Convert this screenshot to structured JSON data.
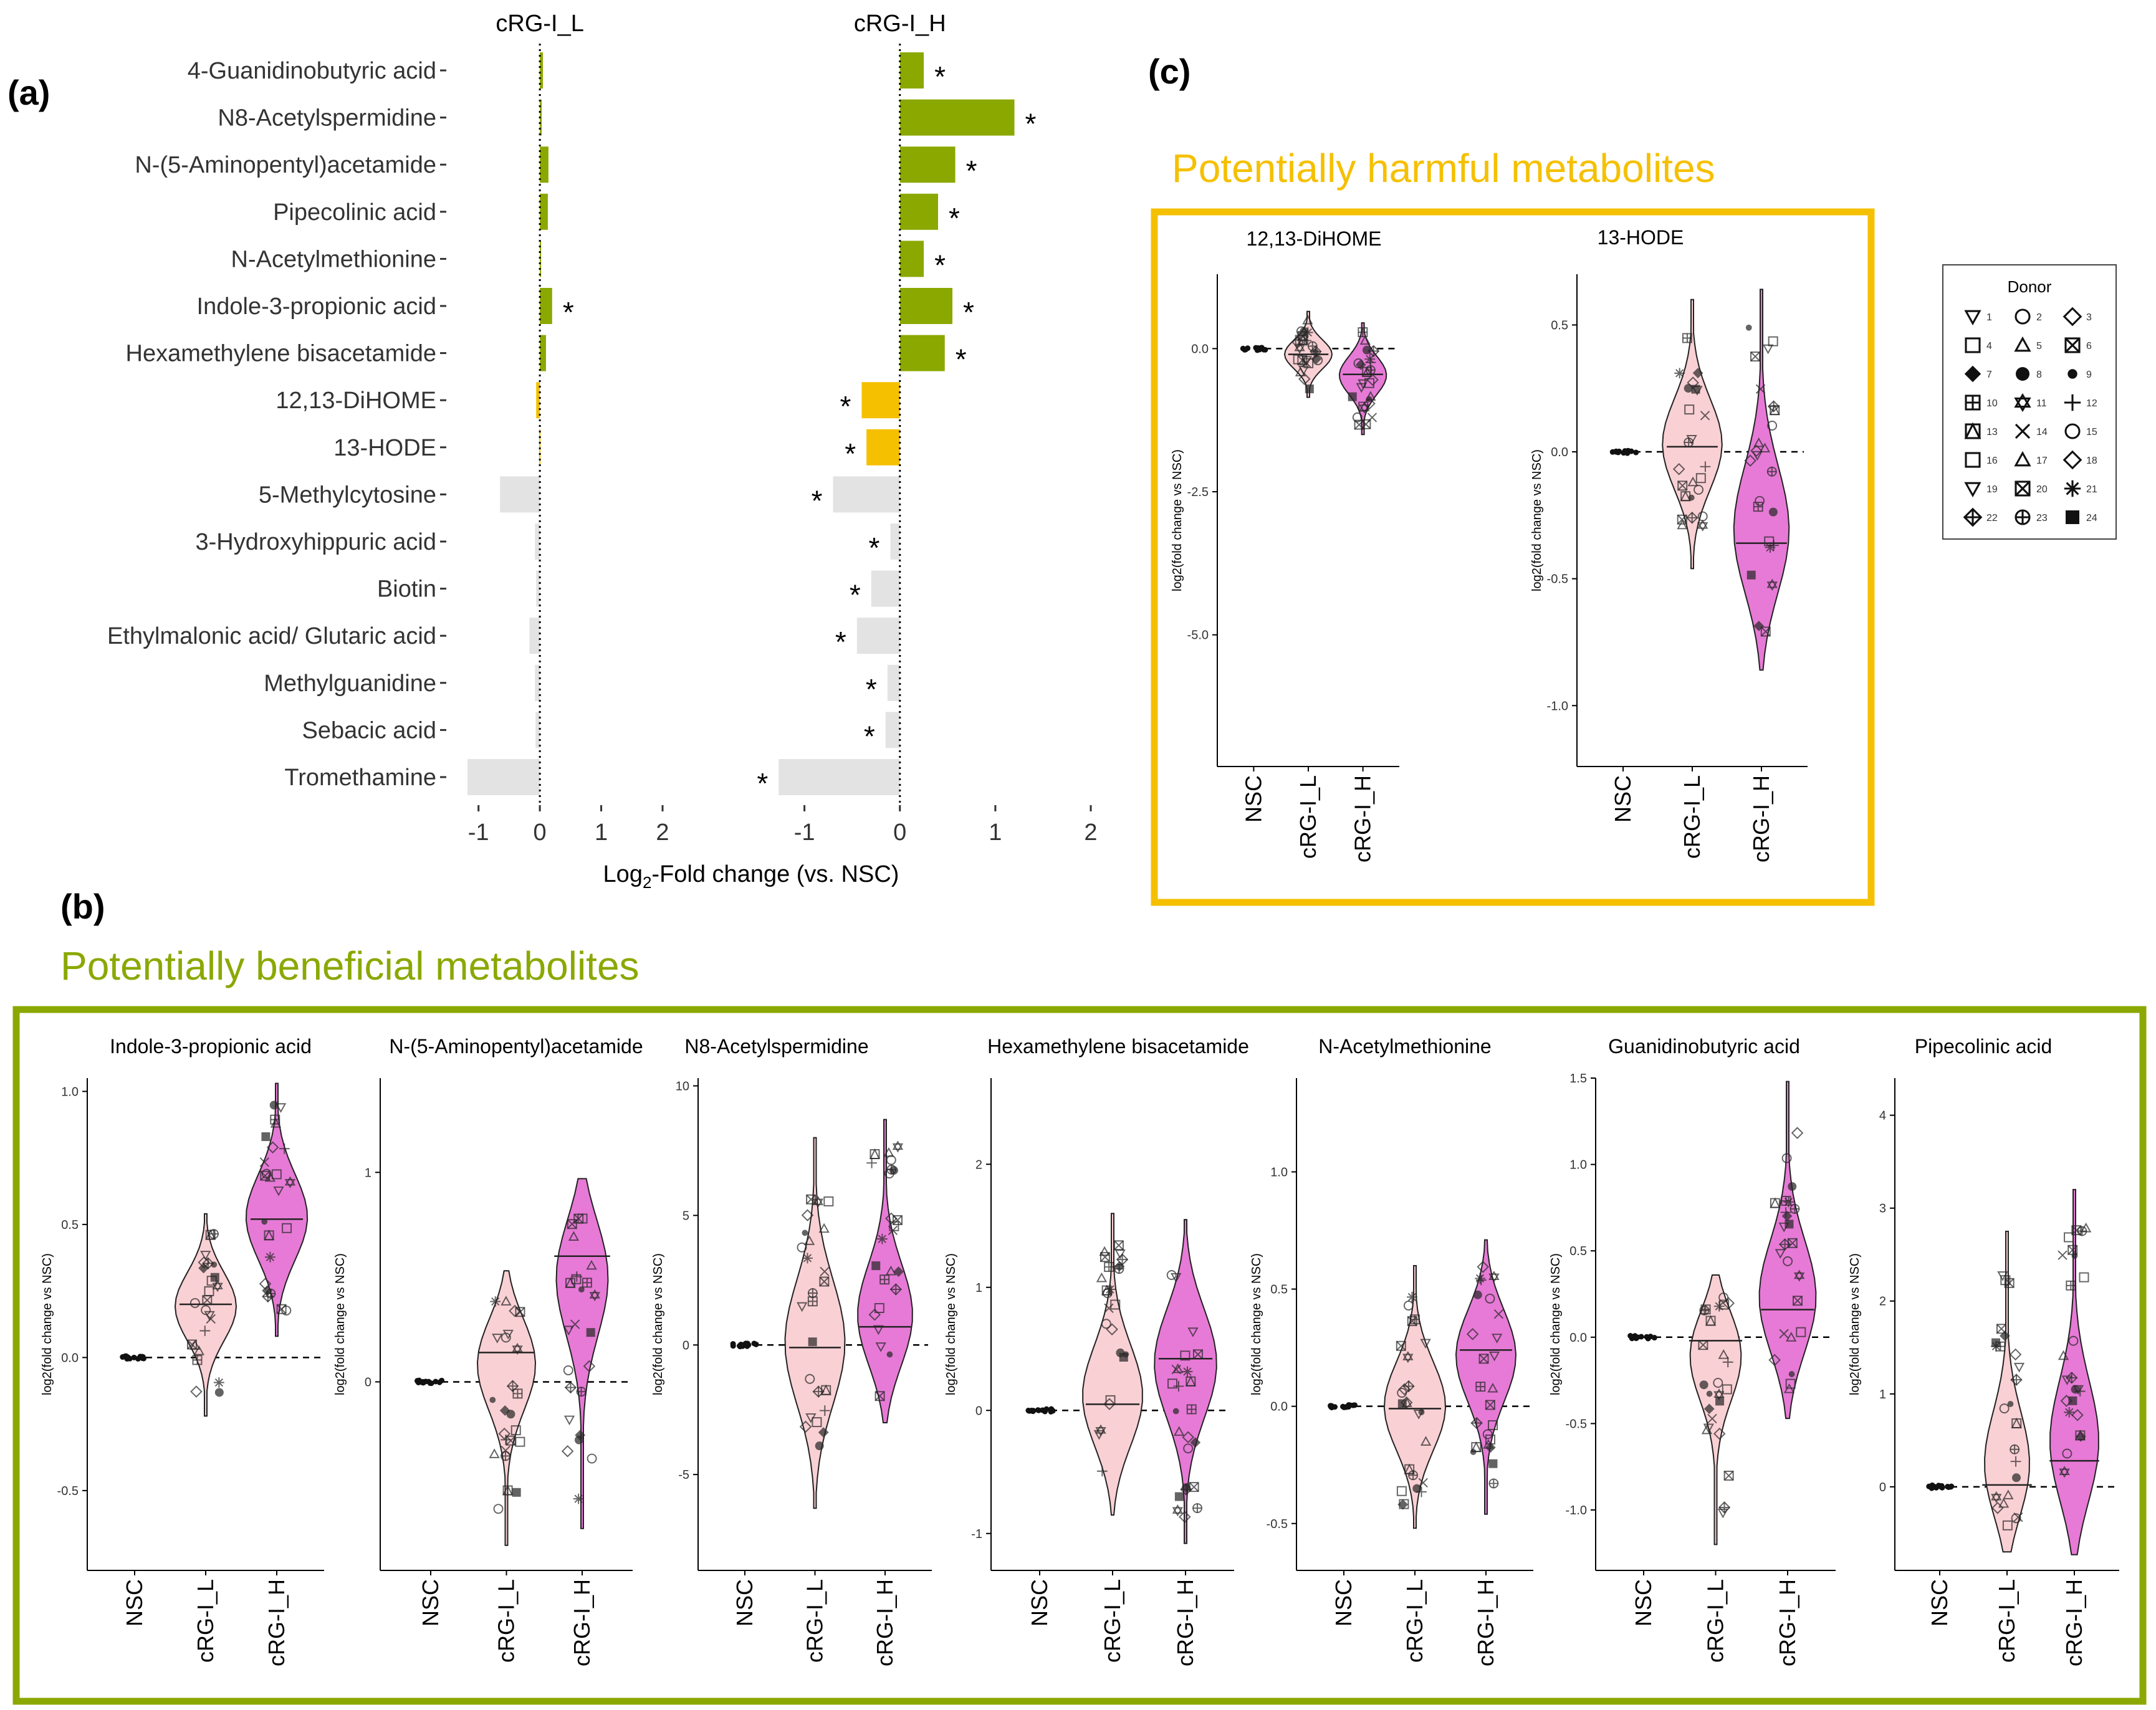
{
  "panel_labels": {
    "a": "(a)",
    "b": "(b)",
    "c": "(c)"
  },
  "titles": {
    "harmful": "Potentially harmful metabolites",
    "beneficial": "Potentially beneficial metabolites"
  },
  "colors": {
    "beneficial": "#8aa800",
    "harmful": "#f5c000",
    "other": "#e3e3e3",
    "violin_L": "#f9d0d4",
    "violin_H": "#e77ad6",
    "box_harmful": "#f5c000",
    "box_beneficial": "#8aa800"
  },
  "legend": {
    "title": "Donor",
    "donors": [
      {
        "n": "1",
        "s": "tri-down"
      },
      {
        "n": "2",
        "s": "circle"
      },
      {
        "n": "3",
        "s": "diamond"
      },
      {
        "n": "4",
        "s": "square"
      },
      {
        "n": "5",
        "s": "tri-up"
      },
      {
        "n": "6",
        "s": "square-x"
      },
      {
        "n": "7",
        "s": "diamond-filled"
      },
      {
        "n": "8",
        "s": "circle-filled"
      },
      {
        "n": "9",
        "s": "dot"
      },
      {
        "n": "10",
        "s": "square-plus"
      },
      {
        "n": "11",
        "s": "star-david"
      },
      {
        "n": "12",
        "s": "plus"
      },
      {
        "n": "13",
        "s": "square-tri"
      },
      {
        "n": "14",
        "s": "cross"
      },
      {
        "n": "15",
        "s": "circle"
      },
      {
        "n": "16",
        "s": "square"
      },
      {
        "n": "17",
        "s": "tri-up"
      },
      {
        "n": "18",
        "s": "diamond"
      },
      {
        "n": "19",
        "s": "tri-down"
      },
      {
        "n": "20",
        "s": "square-x"
      },
      {
        "n": "21",
        "s": "asterisk"
      },
      {
        "n": "22",
        "s": "diamond-plus"
      },
      {
        "n": "23",
        "s": "circle-plus"
      },
      {
        "n": "24",
        "s": "square-filled"
      }
    ]
  },
  "chart_data": [
    {
      "type": "bar",
      "id": "panel-a",
      "xlabel_main": "Log",
      "xlabel_sub": "2",
      "xlabel_rest": "-Fold change (vs. NSC)",
      "facets": [
        "cRG-I_L",
        "cRG-I_H"
      ],
      "xlim": [
        -1.2,
        2
      ],
      "xticks": [
        "-1",
        "0",
        "1",
        "2"
      ],
      "sig_marker": "*",
      "rows": [
        {
          "name": "4-Guanidinobutyric acid",
          "group": "beneficial",
          "L": 0.05,
          "H": 0.25,
          "sigL": false,
          "sigH": true
        },
        {
          "name": "N8-Acetylspermidine",
          "group": "beneficial",
          "L": 0.03,
          "H": 1.2,
          "sigL": false,
          "sigH": true
        },
        {
          "name": "N-(5-Aminopentyl)acetamide",
          "group": "beneficial",
          "L": 0.14,
          "H": 0.58,
          "sigL": false,
          "sigH": true
        },
        {
          "name": "Pipecolinic acid",
          "group": "beneficial",
          "L": 0.13,
          "H": 0.4,
          "sigL": false,
          "sigH": true
        },
        {
          "name": "N-Acetylmethionine",
          "group": "beneficial",
          "L": 0.02,
          "H": 0.25,
          "sigL": false,
          "sigH": true
        },
        {
          "name": "Indole-3-propionic acid",
          "group": "beneficial",
          "L": 0.2,
          "H": 0.55,
          "sigL": true,
          "sigH": true
        },
        {
          "name": "Hexamethylene bisacetamide",
          "group": "beneficial",
          "L": 0.1,
          "H": 0.47,
          "sigL": false,
          "sigH": true
        },
        {
          "name": "12,13-DiHOME",
          "group": "harmful",
          "L": -0.06,
          "H": -0.4,
          "sigL": false,
          "sigH": true
        },
        {
          "name": "13-HODE",
          "group": "harmful",
          "L": -0.01,
          "H": -0.35,
          "sigL": false,
          "sigH": true
        },
        {
          "name": "5-Methylcytosine",
          "group": "other",
          "L": -0.65,
          "H": -0.7,
          "sigL": false,
          "sigH": true
        },
        {
          "name": "3-Hydroxyhippuric acid",
          "group": "other",
          "L": -0.08,
          "H": -0.1,
          "sigL": false,
          "sigH": true
        },
        {
          "name": "Biotin",
          "group": "other",
          "L": -0.06,
          "H": -0.3,
          "sigL": false,
          "sigH": true
        },
        {
          "name": "Ethylmalonic acid/ Glutaric acid",
          "group": "other",
          "L": -0.17,
          "H": -0.45,
          "sigL": false,
          "sigH": true
        },
        {
          "name": "Methylguanidine",
          "group": "other",
          "L": -0.08,
          "H": -0.13,
          "sigL": false,
          "sigH": true
        },
        {
          "name": "Sebacic acid",
          "group": "other",
          "L": -0.07,
          "H": -0.15,
          "sigL": false,
          "sigH": true
        },
        {
          "name": "Tromethamine",
          "group": "other",
          "L": -1.18,
          "H": -1.27,
          "sigL": false,
          "sigH": true
        }
      ]
    },
    {
      "type": "violin",
      "id": "panel-c",
      "ylabel": "log2(fold change vs NSC)",
      "categories": [
        "NSC",
        "cRG-I_L",
        "cRG-I_H"
      ],
      "plots": [
        {
          "title": "12,13-DiHOME",
          "ylim": [
            -7.3,
            1.3
          ],
          "yticks": [
            0,
            -2.5,
            -5
          ],
          "ytick_labels": [
            "0.0",
            "-2.5",
            "-5.0"
          ],
          "L": {
            "min": -0.85,
            "max": 0.65,
            "median": -0.1
          },
          "H": {
            "min": -1.5,
            "max": 0.45,
            "median": -0.45
          }
        },
        {
          "title": "13-HODE",
          "ylim": [
            -1.24,
            0.7
          ],
          "yticks": [
            0.5,
            0,
            -0.5,
            -1
          ],
          "ytick_labels": [
            "0.5",
            "0.0",
            "-0.5",
            "-1.0"
          ],
          "L": {
            "min": -0.46,
            "max": 0.6,
            "median": 0.02
          },
          "H": {
            "min": -0.86,
            "max": 0.64,
            "median": -0.36
          }
        }
      ]
    },
    {
      "type": "violin",
      "id": "panel-b",
      "ylabel": "log2(fold change vs NSC)",
      "categories": [
        "NSC",
        "cRG-I_L",
        "cRG-I_H"
      ],
      "plots": [
        {
          "title": "Indole-3-propionic acid",
          "ylim": [
            -0.8,
            1.05
          ],
          "yticks": [
            1,
            0.5,
            0,
            -0.5
          ],
          "ytick_labels": [
            "1.0",
            "0.5",
            "0.0",
            "-0.5"
          ],
          "L": {
            "min": -0.22,
            "max": 0.54,
            "median": 0.2
          },
          "H": {
            "min": 0.08,
            "max": 1.03,
            "median": 0.52
          }
        },
        {
          "title": "N-(5-Aminopentyl)acetamide",
          "ylim": [
            -0.9,
            1.45
          ],
          "yticks": [
            1,
            0
          ],
          "ytick_labels": [
            "1",
            "0"
          ],
          "L": {
            "min": -0.78,
            "max": 0.53,
            "median": 0.14
          },
          "H": {
            "min": -0.7,
            "max": 0.97,
            "median": 0.6
          }
        },
        {
          "title": "N8-Acetylspermidine",
          "ylim": [
            -8.7,
            10.3
          ],
          "yticks": [
            10,
            5,
            0,
            -5
          ],
          "ytick_labels": [
            "10",
            "5",
            "0",
            "-5"
          ],
          "L": {
            "min": -6.3,
            "max": 8,
            "median": -0.1
          },
          "H": {
            "min": -3,
            "max": 8.7,
            "median": 0.7
          }
        },
        {
          "title": "Hexamethylene bisacetamide",
          "ylim": [
            -1.3,
            2.7
          ],
          "yticks": [
            2,
            1,
            0,
            -1
          ],
          "ytick_labels": [
            "2",
            "1",
            "0",
            "-1"
          ],
          "L": {
            "min": -0.85,
            "max": 1.6,
            "median": 0.05
          },
          "H": {
            "min": -1.08,
            "max": 1.55,
            "median": 0.42
          }
        },
        {
          "title": "N-Acetylmethionine",
          "ylim": [
            -0.7,
            1.4
          ],
          "yticks": [
            1,
            0.5,
            0,
            -0.5
          ],
          "ytick_labels": [
            "1.0",
            "0.5",
            "0.0",
            "-0.5"
          ],
          "L": {
            "min": -0.52,
            "max": 0.6,
            "median": -0.01
          },
          "H": {
            "min": -0.46,
            "max": 0.71,
            "median": 0.24
          }
        },
        {
          "title": "Guanidinobutyric acid",
          "ylim": [
            -1.35,
            1.5
          ],
          "yticks": [
            1.5,
            1,
            0.5,
            0,
            -0.5,
            -1
          ],
          "ytick_labels": [
            "1.5",
            "1.0",
            "0.5",
            "0.0",
            "-0.5",
            "-1.0"
          ],
          "L": {
            "min": -1.2,
            "max": 0.36,
            "median": -0.02
          },
          "H": {
            "min": -0.47,
            "max": 1.48,
            "median": 0.16
          }
        },
        {
          "title": "Pipecolinic acid",
          "ylim": [
            -0.9,
            4.4
          ],
          "yticks": [
            4,
            3,
            2,
            1,
            0
          ],
          "ytick_labels": [
            "4",
            "3",
            "2",
            "1",
            "0"
          ],
          "L": {
            "min": -0.7,
            "max": 2.75,
            "median": 0.02
          },
          "H": {
            "min": -0.73,
            "max": 3.2,
            "median": 0.28
          }
        }
      ]
    }
  ]
}
